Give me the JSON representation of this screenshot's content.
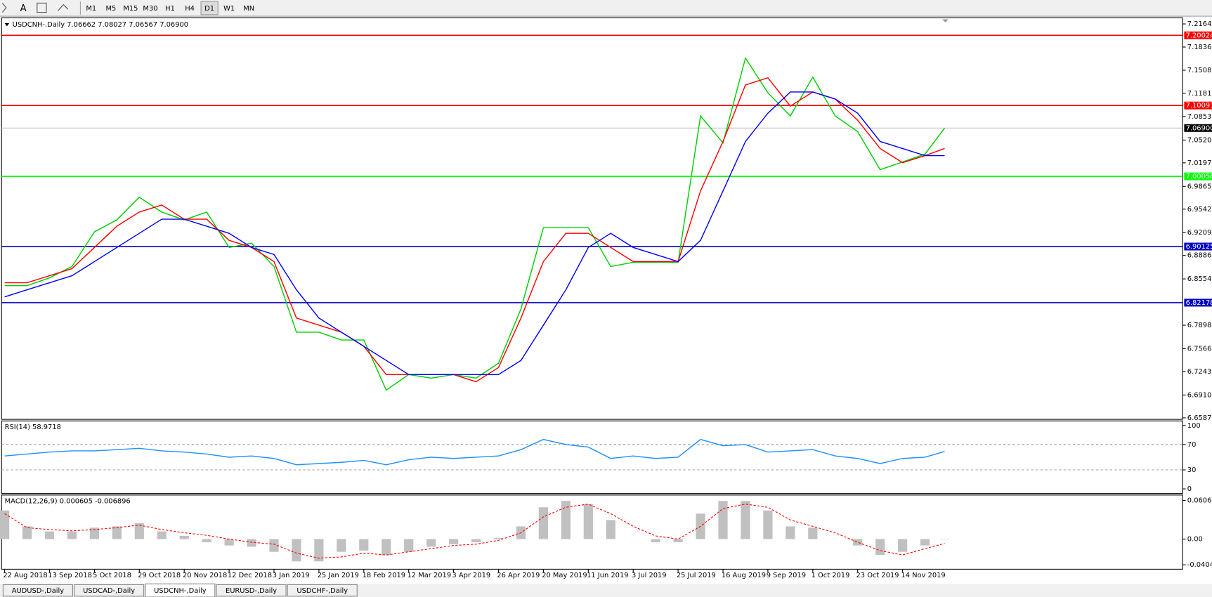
{
  "toolbar": {
    "text_tool": "A",
    "timeframes": [
      "M1",
      "M5",
      "M15",
      "M30",
      "H1",
      "H4",
      "D1",
      "W1",
      "MN"
    ],
    "active": "D1"
  },
  "tabs": {
    "items": [
      "AUDUSD-,Daily",
      "USDCAD-,Daily",
      "USDCNH-,Daily",
      "EURUSD-,Daily",
      "USDCHF-,Daily"
    ],
    "active": "USDCNH-,Daily"
  },
  "chart_data": [
    {
      "type": "line",
      "title": "USDCNH-.Daily 7.06662 7.08027 7.06567 7.06900",
      "x": [
        0,
        8,
        16,
        24,
        32,
        40,
        48,
        56,
        64,
        72,
        80,
        88,
        96,
        104,
        112,
        120,
        128,
        136,
        144,
        152,
        160,
        168,
        176,
        184,
        192,
        200,
        208,
        216,
        224,
        232,
        240,
        248,
        256,
        264,
        272,
        280,
        288,
        296,
        304,
        312,
        320,
        328,
        335
      ],
      "series": [
        {
          "name": "Close",
          "color": "#00d000",
          "values": [
            6.846,
            6.846,
            6.857,
            6.873,
            6.922,
            6.939,
            6.971,
            6.95,
            6.939,
            6.95,
            6.9,
            6.906,
            6.873,
            6.78,
            6.78,
            6.769,
            6.769,
            6.698,
            6.72,
            6.715,
            6.72,
            6.715,
            6.736,
            6.813,
            6.928,
            6.928,
            6.928,
            6.873,
            6.879,
            6.879,
            6.879,
            7.086,
            7.048,
            7.168,
            7.119,
            7.086,
            7.141,
            7.086,
            7.064,
            7.01,
            7.021,
            7.032,
            7.069
          ]
        },
        {
          "name": "MA fast",
          "color": "#ff0000",
          "values": [
            6.85,
            6.85,
            6.86,
            6.87,
            6.9,
            6.93,
            6.95,
            6.96,
            6.94,
            6.94,
            6.91,
            6.9,
            6.88,
            6.8,
            6.79,
            6.78,
            6.76,
            6.72,
            6.72,
            6.72,
            6.72,
            6.71,
            6.73,
            6.8,
            6.88,
            6.92,
            6.92,
            6.9,
            6.88,
            6.88,
            6.88,
            6.98,
            7.05,
            7.13,
            7.14,
            7.1,
            7.12,
            7.11,
            7.08,
            7.04,
            7.02,
            7.03,
            7.04
          ]
        },
        {
          "name": "MA slow",
          "color": "#0000ff",
          "values": [
            6.83,
            6.84,
            6.85,
            6.86,
            6.88,
            6.9,
            6.92,
            6.94,
            6.94,
            6.93,
            6.92,
            6.9,
            6.89,
            6.84,
            6.8,
            6.78,
            6.76,
            6.74,
            6.72,
            6.72,
            6.72,
            6.72,
            6.72,
            6.74,
            6.79,
            6.84,
            6.9,
            6.92,
            6.9,
            6.89,
            6.88,
            6.91,
            6.98,
            7.05,
            7.09,
            7.12,
            7.12,
            7.11,
            7.09,
            7.05,
            7.04,
            7.03,
            7.03
          ]
        }
      ],
      "xlim": [
        -1.1,
        419.8
      ],
      "xticks": [
        {
          "value": 0,
          "label": "22 Aug 2018"
        },
        {
          "value": 16,
          "label": "13 Sep 2018"
        },
        {
          "value": 32,
          "label": "5 Oct 2018"
        },
        {
          "value": 48,
          "label": "29 Oct 2018"
        },
        {
          "value": 64,
          "label": "20 Nov 2018"
        },
        {
          "value": 80,
          "label": "12 Dec 2018"
        },
        {
          "value": 96,
          "label": "3 Jan 2019"
        },
        {
          "value": 112,
          "label": "25 Jan 2019"
        },
        {
          "value": 128,
          "label": "18 Feb 2019"
        },
        {
          "value": 144,
          "label": "12 Mar 2019"
        },
        {
          "value": 160,
          "label": "3 Apr 2019"
        },
        {
          "value": 176,
          "label": "26 Apr 2019"
        },
        {
          "value": 192,
          "label": "20 May 2019"
        },
        {
          "value": 208,
          "label": "11 Jun 2019"
        },
        {
          "value": 224,
          "label": "3 Jul 2019"
        },
        {
          "value": 240,
          "label": "25 Jul 2019"
        },
        {
          "value": 256,
          "label": "16 Aug 2019"
        },
        {
          "value": 272,
          "label": "9 Sep 2019"
        },
        {
          "value": 288,
          "label": "1 Oct 2019"
        },
        {
          "value": 304,
          "label": "23 Oct 2019"
        },
        {
          "value": 320,
          "label": "14 Nov 2019"
        }
      ],
      "ylim": [
        6.6566,
        7.2251
      ],
      "yticks": [
        {
          "value": 7.2164,
          "label": "7.21640"
        },
        7.18365,
        7.15085,
        7.11815,
        {
          "value": 7.0853,
          "label": "7.08530"
        },
        {
          "value": 7.052,
          "label": "7.05200"
        },
        7.01975,
        {
          "value": 6.9865,
          "label": "6.98650"
        },
        {
          "value": 6.9542,
          "label": "6.95420"
        },
        6.92095,
        6.88865,
        {
          "value": 6.8554,
          "label": "6.85540"
        },
        6.78985,
        {
          "value": 6.7566,
          "label": "6.75660"
        },
        {
          "value": 6.7243,
          "label": "6.72430"
        },
        6.69105,
        6.65875
      ],
      "levels": [
        {
          "value": 7.20024,
          "color": "#ff0000"
        },
        {
          "value": 7.10091,
          "color": "#ff0000"
        },
        {
          "value": 7.00058,
          "color": "#00ff00"
        },
        {
          "value": 6.90125,
          "color": "#0000c0"
        },
        {
          "value": 6.82178,
          "color": "#0000c0"
        }
      ],
      "last_price": {
        "value": {
          "value": 7.069,
          "label": "7.06900"
        }
      }
    },
    {
      "type": "line",
      "title": "RSI(14) 58.9718",
      "x": [
        0,
        8,
        16,
        24,
        32,
        40,
        48,
        56,
        64,
        72,
        80,
        88,
        96,
        104,
        112,
        120,
        128,
        136,
        144,
        152,
        160,
        168,
        176,
        184,
        192,
        200,
        208,
        216,
        224,
        232,
        240,
        248,
        256,
        264,
        272,
        280,
        288,
        296,
        304,
        312,
        320,
        328,
        335
      ],
      "series": [
        {
          "name": "RSI",
          "color": "#1e90ff",
          "values": [
            52,
            55,
            58,
            60,
            60,
            62,
            64,
            60,
            58,
            55,
            50,
            52,
            48,
            38,
            40,
            42,
            45,
            38,
            46,
            50,
            48,
            50,
            52,
            62,
            78,
            70,
            66,
            48,
            52,
            48,
            50,
            78,
            68,
            70,
            58,
            60,
            62,
            52,
            48,
            40,
            48,
            50,
            59
          ]
        }
      ],
      "xlim": [
        -1.1,
        419.8
      ],
      "ylim": [
        -7.3,
        107.3
      ],
      "yticks": [
        100,
        70,
        30,
        0
      ],
      "dashed_levels": [
        70,
        30
      ]
    },
    {
      "type": "macd",
      "title": "MACD(12,26,9) 0.000605 -0.006896",
      "x": [
        0,
        8,
        16,
        24,
        32,
        40,
        48,
        56,
        64,
        72,
        80,
        88,
        96,
        104,
        112,
        120,
        128,
        136,
        144,
        152,
        160,
        168,
        176,
        184,
        192,
        200,
        208,
        216,
        224,
        232,
        240,
        248,
        256,
        264,
        272,
        280,
        288,
        296,
        304,
        312,
        320,
        328,
        335
      ],
      "series": [
        {
          "name": "MACD",
          "color": "#c0c0c0",
          "values": [
            0.045,
            0.02,
            0.012,
            0.012,
            0.018,
            0.02,
            0.025,
            0.012,
            0.005,
            -0.005,
            -0.01,
            -0.012,
            -0.02,
            -0.035,
            -0.035,
            -0.02,
            -0.018,
            -0.025,
            -0.02,
            -0.012,
            -0.008,
            -0.005,
            0.002,
            0.02,
            0.05,
            0.06,
            0.055,
            0.03,
            0.0,
            -0.005,
            -0.005,
            0.04,
            0.06,
            0.06,
            0.045,
            0.02,
            0.018,
            0.0,
            -0.01,
            -0.025,
            -0.02,
            -0.01,
            0.000605
          ]
        },
        {
          "name": "Signal",
          "color": "#ff0000",
          "values": [
            0.04,
            0.018,
            0.015,
            0.013,
            0.015,
            0.018,
            0.022,
            0.015,
            0.01,
            0.006,
            0.0,
            -0.005,
            -0.008,
            -0.022,
            -0.03,
            -0.028,
            -0.022,
            -0.025,
            -0.02,
            -0.015,
            -0.01,
            -0.008,
            -0.002,
            0.01,
            0.035,
            0.05,
            0.055,
            0.04,
            0.02,
            0.005,
            0.0,
            0.02,
            0.048,
            0.055,
            0.05,
            0.03,
            0.02,
            0.01,
            -0.005,
            -0.018,
            -0.025,
            -0.015,
            -0.006896
          ]
        }
      ],
      "xlim": [
        -1.1,
        419.8
      ],
      "ylim": [
        -0.0473,
        0.0692
      ],
      "yticks": [
        0.060687,
        {
          "value": 0,
          "label": "0.00"
        },
        -0.040432
      ]
    }
  ]
}
